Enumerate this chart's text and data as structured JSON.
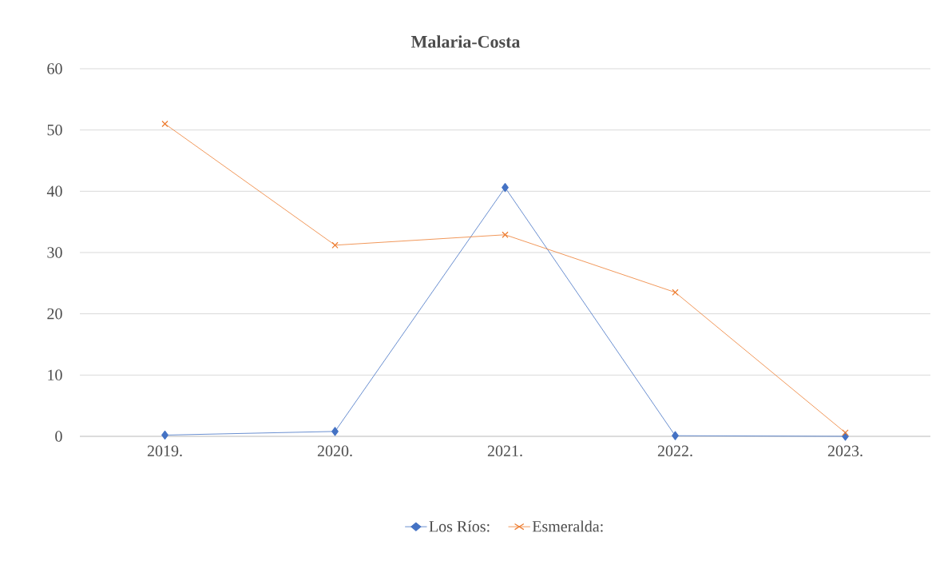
{
  "chart_data": {
    "type": "line",
    "title": "Malaria-Costa",
    "categories": [
      "2019.",
      "2020.",
      "2021.",
      "2022.",
      "2023."
    ],
    "series": [
      {
        "name": "Los Ríos:",
        "color": "#4472c4",
        "marker": "diamond",
        "values": [
          0.2,
          0.8,
          40.6,
          0.1,
          0
        ]
      },
      {
        "name": "Esmeralda:",
        "color": "#ed7d31",
        "marker": "cross",
        "values": [
          51,
          31.2,
          32.9,
          23.5,
          0.6
        ]
      }
    ],
    "ylim": [
      0,
      60
    ],
    "yticks": [
      0,
      10,
      20,
      30,
      40,
      50,
      60
    ],
    "grid": "y",
    "legend": "bottom"
  }
}
